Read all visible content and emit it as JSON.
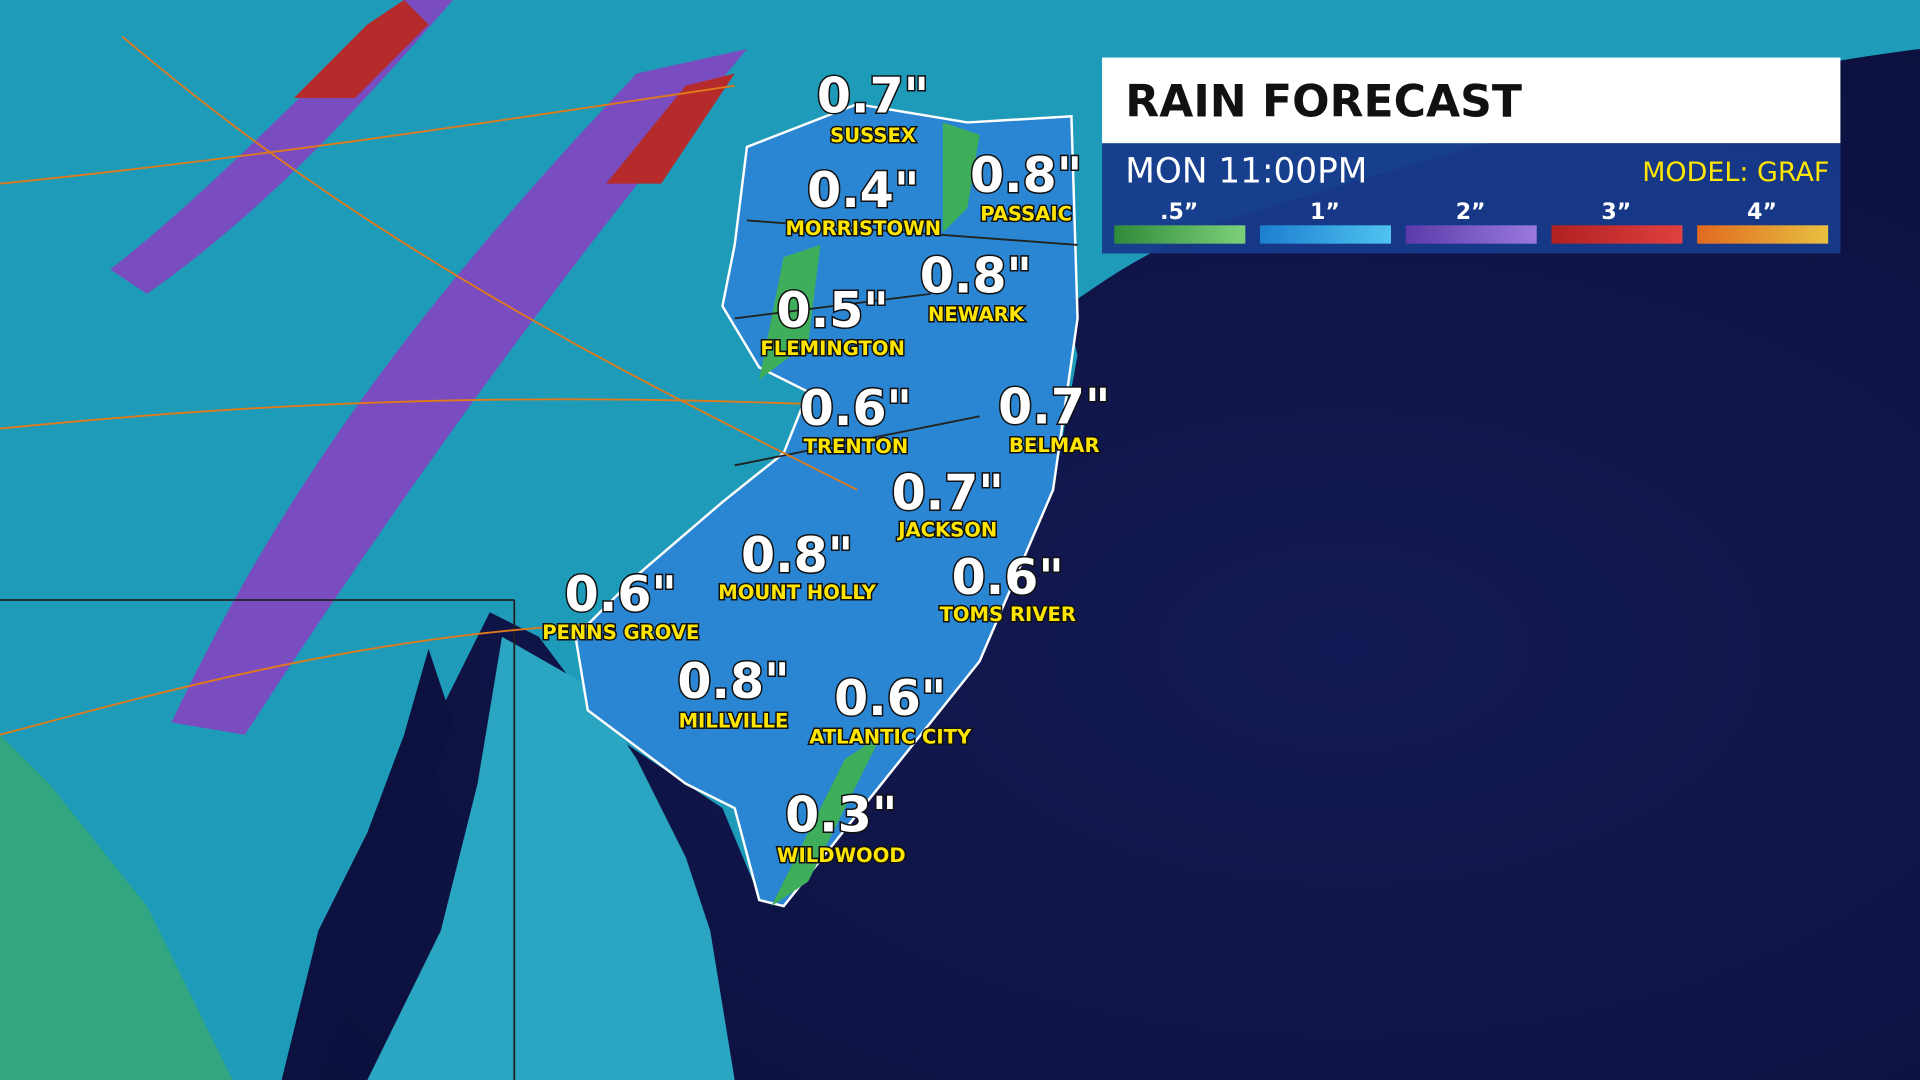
{
  "header": {
    "title": "RAIN FORECAST",
    "time": "MON 11:00PM",
    "model": "MODEL: GRAF"
  },
  "legend": [
    ".5”",
    "1”",
    "2”",
    "3”",
    "4”"
  ],
  "locations": [
    {
      "amount": "0.7\"",
      "city": "SUSSEX"
    },
    {
      "amount": "0.4\"",
      "city": "MORRISTOWN"
    },
    {
      "amount": "0.8\"",
      "city": "PASSAIC"
    },
    {
      "amount": "0.8\"",
      "city": "NEWARK"
    },
    {
      "amount": "0.5\"",
      "city": "FLEMINGTON"
    },
    {
      "amount": "0.6\"",
      "city": "TRENTON"
    },
    {
      "amount": "0.7\"",
      "city": "BELMAR"
    },
    {
      "amount": "0.7\"",
      "city": "JACKSON"
    },
    {
      "amount": "0.8\"",
      "city": "MOUNT HOLLY"
    },
    {
      "amount": "0.6\"",
      "city": "TOMS RIVER"
    },
    {
      "amount": "0.6\"",
      "city": "PENNS GROVE"
    },
    {
      "amount": "0.8\"",
      "city": "MILLVILLE"
    },
    {
      "amount": "0.6\"",
      "city": "ATLANTIC CITY"
    },
    {
      "amount": "0.3\"",
      "city": "WILDWOOD"
    }
  ]
}
